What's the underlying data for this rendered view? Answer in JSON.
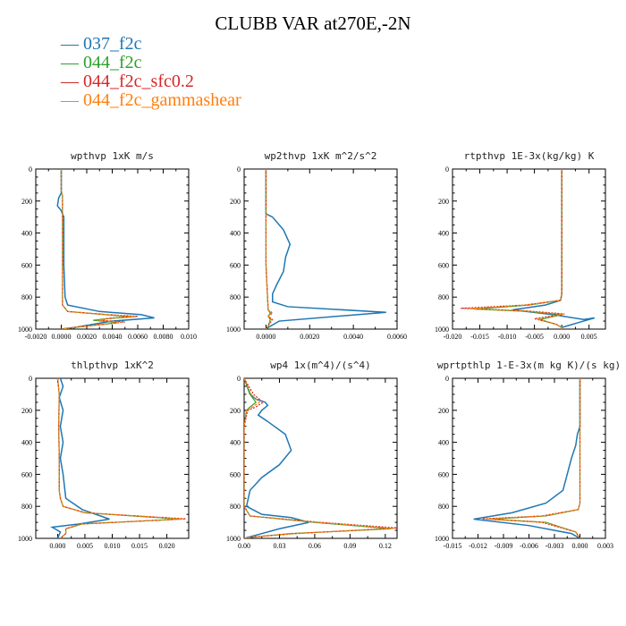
{
  "title": "CLUBB VAR at270E,-2N",
  "legend": [
    {
      "label": "037_f2c",
      "color": "#1f77b4"
    },
    {
      "label": "044_f2c",
      "color": "#2ca02c"
    },
    {
      "label": "044_f2c_sfc0.2",
      "color": "#d62728"
    },
    {
      "label": "044_f2c_gammashear",
      "color": "#ff7f0e"
    }
  ],
  "legend_glyph": "—",
  "chart_data": [
    {
      "type": "line",
      "title": "wpthvp  1xK m/s",
      "xlim": [
        -0.002,
        0.01
      ],
      "ylim": [
        0,
        1000
      ],
      "y_inverted": true,
      "xticks": [
        -0.002,
        0.0,
        0.002,
        0.004,
        0.006,
        0.008,
        0.01
      ],
      "xtick_labels": [
        "-0.0020",
        "0.0000",
        "0.0020",
        "0.0040",
        "0.0060",
        "0.0080",
        "0.010"
      ],
      "yticks": [
        0,
        200,
        400,
        600,
        800,
        1000
      ],
      "ytick_labels": [
        "0",
        "200",
        "400",
        "600",
        "800",
        "1000"
      ],
      "series": [
        {
          "name": "037_f2c",
          "x": [
            0,
            0,
            -0.0002,
            -0.0003,
            0,
            0.0002,
            0.0002,
            0.0003,
            0.0005,
            0.003,
            0.0063,
            0.0073,
            0.004,
            0.001,
            0
          ],
          "y": [
            0,
            150,
            180,
            230,
            260,
            300,
            600,
            800,
            850,
            890,
            910,
            930,
            950,
            990,
            1000
          ]
        },
        {
          "name": "044_f2c",
          "x": [
            0,
            0,
            0.0001,
            0.0001,
            0.0001,
            0.0005,
            0.0035,
            0.0055,
            0.0035,
            0.0025,
            0.0045,
            0.001,
            0
          ],
          "y": [
            0,
            140,
            170,
            250,
            850,
            890,
            910,
            925,
            935,
            945,
            960,
            990,
            1000
          ]
        },
        {
          "name": "044_f2c_sfc0.2",
          "x": [
            0,
            0,
            0.0001,
            0.0001,
            0.0001,
            0.0005,
            0.0037,
            0.006,
            0.004,
            0.003,
            0.005,
            0.001,
            0
          ],
          "y": [
            0,
            140,
            170,
            250,
            850,
            890,
            910,
            920,
            930,
            945,
            955,
            990,
            1000
          ]
        },
        {
          "name": "044_f2c_gammashear",
          "x": [
            0,
            0,
            0.0001,
            0.0001,
            0.0001,
            0.0005,
            0.0036,
            0.0058,
            0.0038,
            0.0028,
            0.0047,
            0.001,
            0
          ],
          "y": [
            0,
            140,
            170,
            250,
            850,
            890,
            910,
            922,
            932,
            945,
            957,
            990,
            1000
          ]
        }
      ]
    },
    {
      "type": "line",
      "title": "wp2thvp  1xK m^2/s^2",
      "xlim": [
        -0.001,
        0.006
      ],
      "ylim": [
        0,
        1000
      ],
      "y_inverted": true,
      "xticks": [
        0,
        0.002,
        0.004,
        0.006
      ],
      "xtick_labels": [
        "0.0000",
        "0.0020",
        "0.0040",
        "0.0060"
      ],
      "yticks": [
        0,
        200,
        400,
        600,
        800,
        1000
      ],
      "ytick_labels": [
        "0",
        "200",
        "400",
        "600",
        "800",
        "1000"
      ],
      "series": [
        {
          "name": "037_f2c",
          "x": [
            0,
            0,
            0.0003,
            0.0008,
            0.0011,
            0.0009,
            0.0008,
            0.0005,
            0.0003,
            0.0003,
            0.001,
            0.0055,
            0.0006,
            0.0001,
            0
          ],
          "y": [
            0,
            280,
            300,
            380,
            470,
            550,
            640,
            720,
            780,
            830,
            860,
            895,
            950,
            990,
            1000
          ]
        },
        {
          "name": "044_f2c",
          "x": [
            0,
            0,
            0,
            0.0001,
            0.0002,
            0.0001,
            0.0002,
            0.0001,
            0
          ],
          "y": [
            0,
            280,
            600,
            880,
            900,
            920,
            940,
            980,
            1000
          ]
        },
        {
          "name": "044_f2c_sfc0.2",
          "x": [
            0,
            0,
            0,
            0.0001,
            0.0003,
            0.0001,
            0.0003,
            0.0001,
            0
          ],
          "y": [
            0,
            280,
            600,
            880,
            900,
            920,
            940,
            980,
            1000
          ]
        },
        {
          "name": "044_f2c_gammashear",
          "x": [
            0,
            0,
            0,
            0.0001,
            0.00025,
            0.0001,
            0.00025,
            0.0001,
            0
          ],
          "y": [
            0,
            280,
            600,
            880,
            900,
            920,
            940,
            980,
            1000
          ]
        }
      ]
    },
    {
      "type": "line",
      "title": "rtpthvp  1E-3x(kg/kg) K",
      "xlim": [
        -0.02,
        0.008
      ],
      "ylim": [
        0,
        1000
      ],
      "y_inverted": true,
      "xticks": [
        -0.02,
        -0.015,
        -0.01,
        -0.005,
        0,
        0.005
      ],
      "xtick_labels": [
        "-0.020",
        "-0.015",
        "-0.010",
        "-0.005",
        "0.000",
        "0.005"
      ],
      "yticks": [
        0,
        200,
        400,
        600,
        800,
        1000
      ],
      "ytick_labels": [
        "0",
        "200",
        "400",
        "600",
        "800",
        "1000"
      ],
      "series": [
        {
          "name": "037_f2c",
          "x": [
            0,
            0,
            -0.0002,
            -0.003,
            -0.009,
            -0.0015,
            0.004,
            0.006,
            0.003,
            0,
            0
          ],
          "y": [
            0,
            780,
            820,
            850,
            880,
            910,
            940,
            930,
            960,
            990,
            1000
          ]
        },
        {
          "name": "044_f2c",
          "x": [
            0,
            0,
            -0.0002,
            -0.006,
            -0.016,
            -0.006,
            0,
            -0.004,
            -0.001,
            0,
            0
          ],
          "y": [
            0,
            780,
            820,
            850,
            875,
            890,
            910,
            940,
            970,
            990,
            1000
          ]
        },
        {
          "name": "044_f2c_sfc0.2",
          "x": [
            0,
            0,
            -0.0002,
            -0.007,
            -0.0185,
            -0.007,
            0.0005,
            -0.005,
            -0.001,
            0,
            0
          ],
          "y": [
            0,
            780,
            820,
            850,
            870,
            885,
            905,
            935,
            970,
            990,
            1000
          ]
        },
        {
          "name": "044_f2c_gammashear",
          "x": [
            0,
            0,
            -0.0002,
            -0.0065,
            -0.017,
            -0.0065,
            0.0003,
            -0.0045,
            -0.001,
            0,
            0
          ],
          "y": [
            0,
            780,
            820,
            850,
            872,
            888,
            908,
            938,
            970,
            990,
            1000
          ]
        }
      ]
    },
    {
      "type": "line",
      "title": "thlpthvp  1xK^2",
      "xlim": [
        -0.004,
        0.024
      ],
      "ylim": [
        0,
        1000
      ],
      "y_inverted": true,
      "xticks": [
        0,
        0.005,
        0.01,
        0.015,
        0.02
      ],
      "xtick_labels": [
        "0.000",
        "0.005",
        "0.010",
        "0.015",
        "0.020"
      ],
      "yticks": [
        0,
        200,
        400,
        600,
        800,
        1000
      ],
      "ytick_labels": [
        "0",
        "200",
        "400",
        "600",
        "800",
        "1000"
      ],
      "series": [
        {
          "name": "037_f2c",
          "x": [
            0.0005,
            0.001,
            0.0003,
            0.001,
            0.0005,
            0.001,
            0.0005,
            0.001,
            0.0015,
            0.0045,
            0.0095,
            0.004,
            -0.001,
            0.0005,
            0
          ],
          "y": [
            0,
            50,
            120,
            200,
            300,
            400,
            500,
            600,
            750,
            820,
            880,
            910,
            930,
            960,
            1000
          ]
        },
        {
          "name": "044_f2c",
          "x": [
            0,
            0.0003,
            0.0002,
            0.0003,
            0.0003,
            0.0005,
            0.001,
            0.005,
            0.0225,
            0.0045,
            0.0015,
            0.0015,
            0.0005
          ],
          "y": [
            0,
            100,
            300,
            500,
            700,
            750,
            800,
            840,
            880,
            910,
            940,
            970,
            1000
          ]
        },
        {
          "name": "044_f2c_sfc0.2",
          "x": [
            0,
            0.0003,
            0.0002,
            0.0003,
            0.0003,
            0.0005,
            0.001,
            0.005,
            0.0235,
            0.0045,
            0.0015,
            0.0015,
            0.0005
          ],
          "y": [
            0,
            100,
            300,
            500,
            700,
            750,
            800,
            840,
            878,
            910,
            940,
            970,
            1000
          ]
        },
        {
          "name": "044_f2c_gammashear",
          "x": [
            0,
            0.0003,
            0.0002,
            0.0003,
            0.0003,
            0.0005,
            0.001,
            0.005,
            0.023,
            0.0045,
            0.0015,
            0.0015,
            0.0005
          ],
          "y": [
            0,
            100,
            300,
            500,
            700,
            750,
            800,
            840,
            879,
            910,
            940,
            970,
            1000
          ]
        }
      ]
    },
    {
      "type": "line",
      "title": "wp4  1x(m^4)/(s^4)",
      "xlim": [
        0,
        0.13
      ],
      "ylim": [
        0,
        1000
      ],
      "y_inverted": true,
      "xticks": [
        0,
        0.03,
        0.06,
        0.09,
        0.12
      ],
      "xtick_labels": [
        "0.00",
        "0.03",
        "0.06",
        "0.09",
        "0.12"
      ],
      "yticks": [
        0,
        200,
        400,
        600,
        800,
        1000
      ],
      "ytick_labels": [
        "0",
        "200",
        "400",
        "600",
        "800",
        "1000"
      ],
      "series": [
        {
          "name": "037_f2c",
          "x": [
            0,
            0.005,
            0.01,
            0.018,
            0.02,
            0.015,
            0.012,
            0.02,
            0.035,
            0.04,
            0.03,
            0.015,
            0.005,
            0.002,
            0.015,
            0.04,
            0.055,
            0.03,
            0.01,
            0
          ],
          "y": [
            0,
            100,
            130,
            150,
            170,
            200,
            230,
            270,
            350,
            450,
            540,
            620,
            700,
            800,
            850,
            870,
            900,
            940,
            980,
            1000
          ]
        },
        {
          "name": "044_f2c",
          "x": [
            0,
            0.005,
            0.01,
            0.005,
            0.002,
            0,
            0,
            0.005,
            0.06,
            0.125,
            0.04,
            0.01,
            0
          ],
          "y": [
            0,
            100,
            150,
            180,
            200,
            300,
            800,
            860,
            900,
            940,
            970,
            990,
            1000
          ]
        },
        {
          "name": "044_f2c_sfc0.2",
          "x": [
            0,
            0.008,
            0.016,
            0.01,
            0.003,
            0,
            0,
            0.005,
            0.065,
            0.13,
            0.045,
            0.01,
            0
          ],
          "y": [
            0,
            100,
            150,
            180,
            200,
            300,
            800,
            860,
            900,
            935,
            970,
            990,
            1000
          ]
        },
        {
          "name": "044_f2c_gammashear",
          "x": [
            0,
            0.006,
            0.013,
            0.007,
            0.002,
            0,
            0,
            0.005,
            0.062,
            0.127,
            0.042,
            0.01,
            0
          ],
          "y": [
            0,
            100,
            150,
            180,
            200,
            300,
            800,
            860,
            900,
            938,
            970,
            990,
            1000
          ]
        }
      ]
    },
    {
      "type": "line",
      "title": "wprtpthlp  1-E-3x(m kg K)/(s kg)",
      "xlim": [
        -0.015,
        0.003
      ],
      "ylim": [
        0,
        1000
      ],
      "y_inverted": true,
      "xticks": [
        -0.015,
        -0.012,
        -0.009,
        -0.006,
        -0.003,
        0,
        0.003
      ],
      "xtick_labels": [
        "-0.015",
        "-0.012",
        "-0.009",
        "-0.006",
        "-0.003",
        "0.000",
        "0.003"
      ],
      "yticks": [
        0,
        200,
        400,
        600,
        800,
        1000
      ],
      "ytick_labels": [
        "0",
        "200",
        "400",
        "600",
        "800",
        "1000"
      ],
      "series": [
        {
          "name": "037_f2c",
          "x": [
            0,
            0,
            -0.0003,
            -0.0005,
            -0.001,
            -0.0015,
            -0.002,
            -0.004,
            -0.008,
            -0.0125,
            -0.006,
            -0.001,
            0
          ],
          "y": [
            0,
            300,
            350,
            420,
            500,
            600,
            700,
            780,
            840,
            880,
            920,
            970,
            1000
          ]
        },
        {
          "name": "044_f2c",
          "x": [
            0,
            0,
            0,
            -0.0002,
            -0.004,
            -0.0105,
            -0.004,
            -0.0005,
            0
          ],
          "y": [
            0,
            600,
            780,
            820,
            860,
            880,
            900,
            960,
            1000
          ]
        },
        {
          "name": "044_f2c_sfc0.2",
          "x": [
            0,
            0,
            0,
            -0.0002,
            -0.0045,
            -0.0115,
            -0.0045,
            -0.0005,
            0
          ],
          "y": [
            0,
            600,
            780,
            820,
            860,
            878,
            900,
            960,
            1000
          ]
        },
        {
          "name": "044_f2c_gammashear",
          "x": [
            0,
            0,
            0,
            -0.0002,
            -0.0042,
            -0.011,
            -0.0042,
            -0.0005,
            0
          ],
          "y": [
            0,
            600,
            780,
            820,
            860,
            879,
            900,
            960,
            1000
          ]
        }
      ]
    }
  ]
}
